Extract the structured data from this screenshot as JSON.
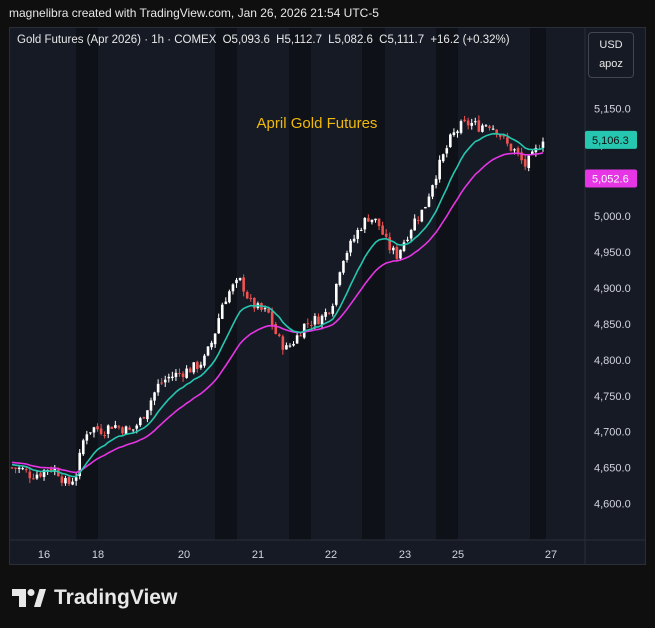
{
  "header": {
    "attribution": "magnelibra created with TradingView.com, Jan 26, 2026 21:54 UTC-5"
  },
  "legend": {
    "symbol": "Gold Futures (Apr 2026) · 1h · COMEX",
    "open": "O5,093.6",
    "high": "H5,112.7",
    "low": "L5,082.6",
    "close": "C5,111.7",
    "change": "+16.2 (+0.32%)"
  },
  "currency": {
    "unit": "USD",
    "mode": "apoz"
  },
  "brand": {
    "name": "TradingView"
  },
  "colors": {
    "up": "#ffffff",
    "down": "#ef5350",
    "ema_fast": "#26c6b0",
    "ema_slow": "#e535e5",
    "annotation": "#f0b90b",
    "bg": "#161a25",
    "session_dark": "#0f1118"
  },
  "chart_data": {
    "type": "candlestick",
    "title": "",
    "annotation": "April Gold Futures",
    "x_ticks": [
      "16",
      "18",
      "20",
      "21",
      "22",
      "23",
      "25",
      "27"
    ],
    "y_ticks": [
      "5,150.0",
      "5,100.0",
      "5,050.0",
      "5,000.0",
      "4,950.0",
      "4,900.0",
      "4,850.0",
      "4,800.0",
      "4,750.0",
      "4,700.0",
      "4,650.0",
      "4,600.0"
    ],
    "ylim": [
      4550,
      5200
    ],
    "price_labels": [
      {
        "label": "5,106.3",
        "value": 5106.3,
        "series": "ema_fast"
      },
      {
        "label": "5,052.6",
        "value": 5052.6,
        "series": "ema_slow"
      }
    ],
    "grid": false,
    "close_path": [
      4650,
      4648,
      4640,
      4642,
      4650,
      4645,
      4625,
      4640,
      4700,
      4705,
      4702,
      4710,
      4705,
      4700,
      4715,
      4740,
      4765,
      4775,
      4780,
      4785,
      4790,
      4800,
      4830,
      4880,
      4900,
      4910,
      4880,
      4870,
      4865,
      4830,
      4815,
      4830,
      4850,
      4855,
      4860,
      4880,
      4940,
      4960,
      4985,
      5000,
      4990,
      4960,
      4945,
      4970,
      4995,
      5010,
      5050,
      5080,
      5110,
      5125,
      5130,
      5125,
      5130,
      5120,
      5100,
      5090,
      5070,
      5085,
      5110
    ]
  }
}
